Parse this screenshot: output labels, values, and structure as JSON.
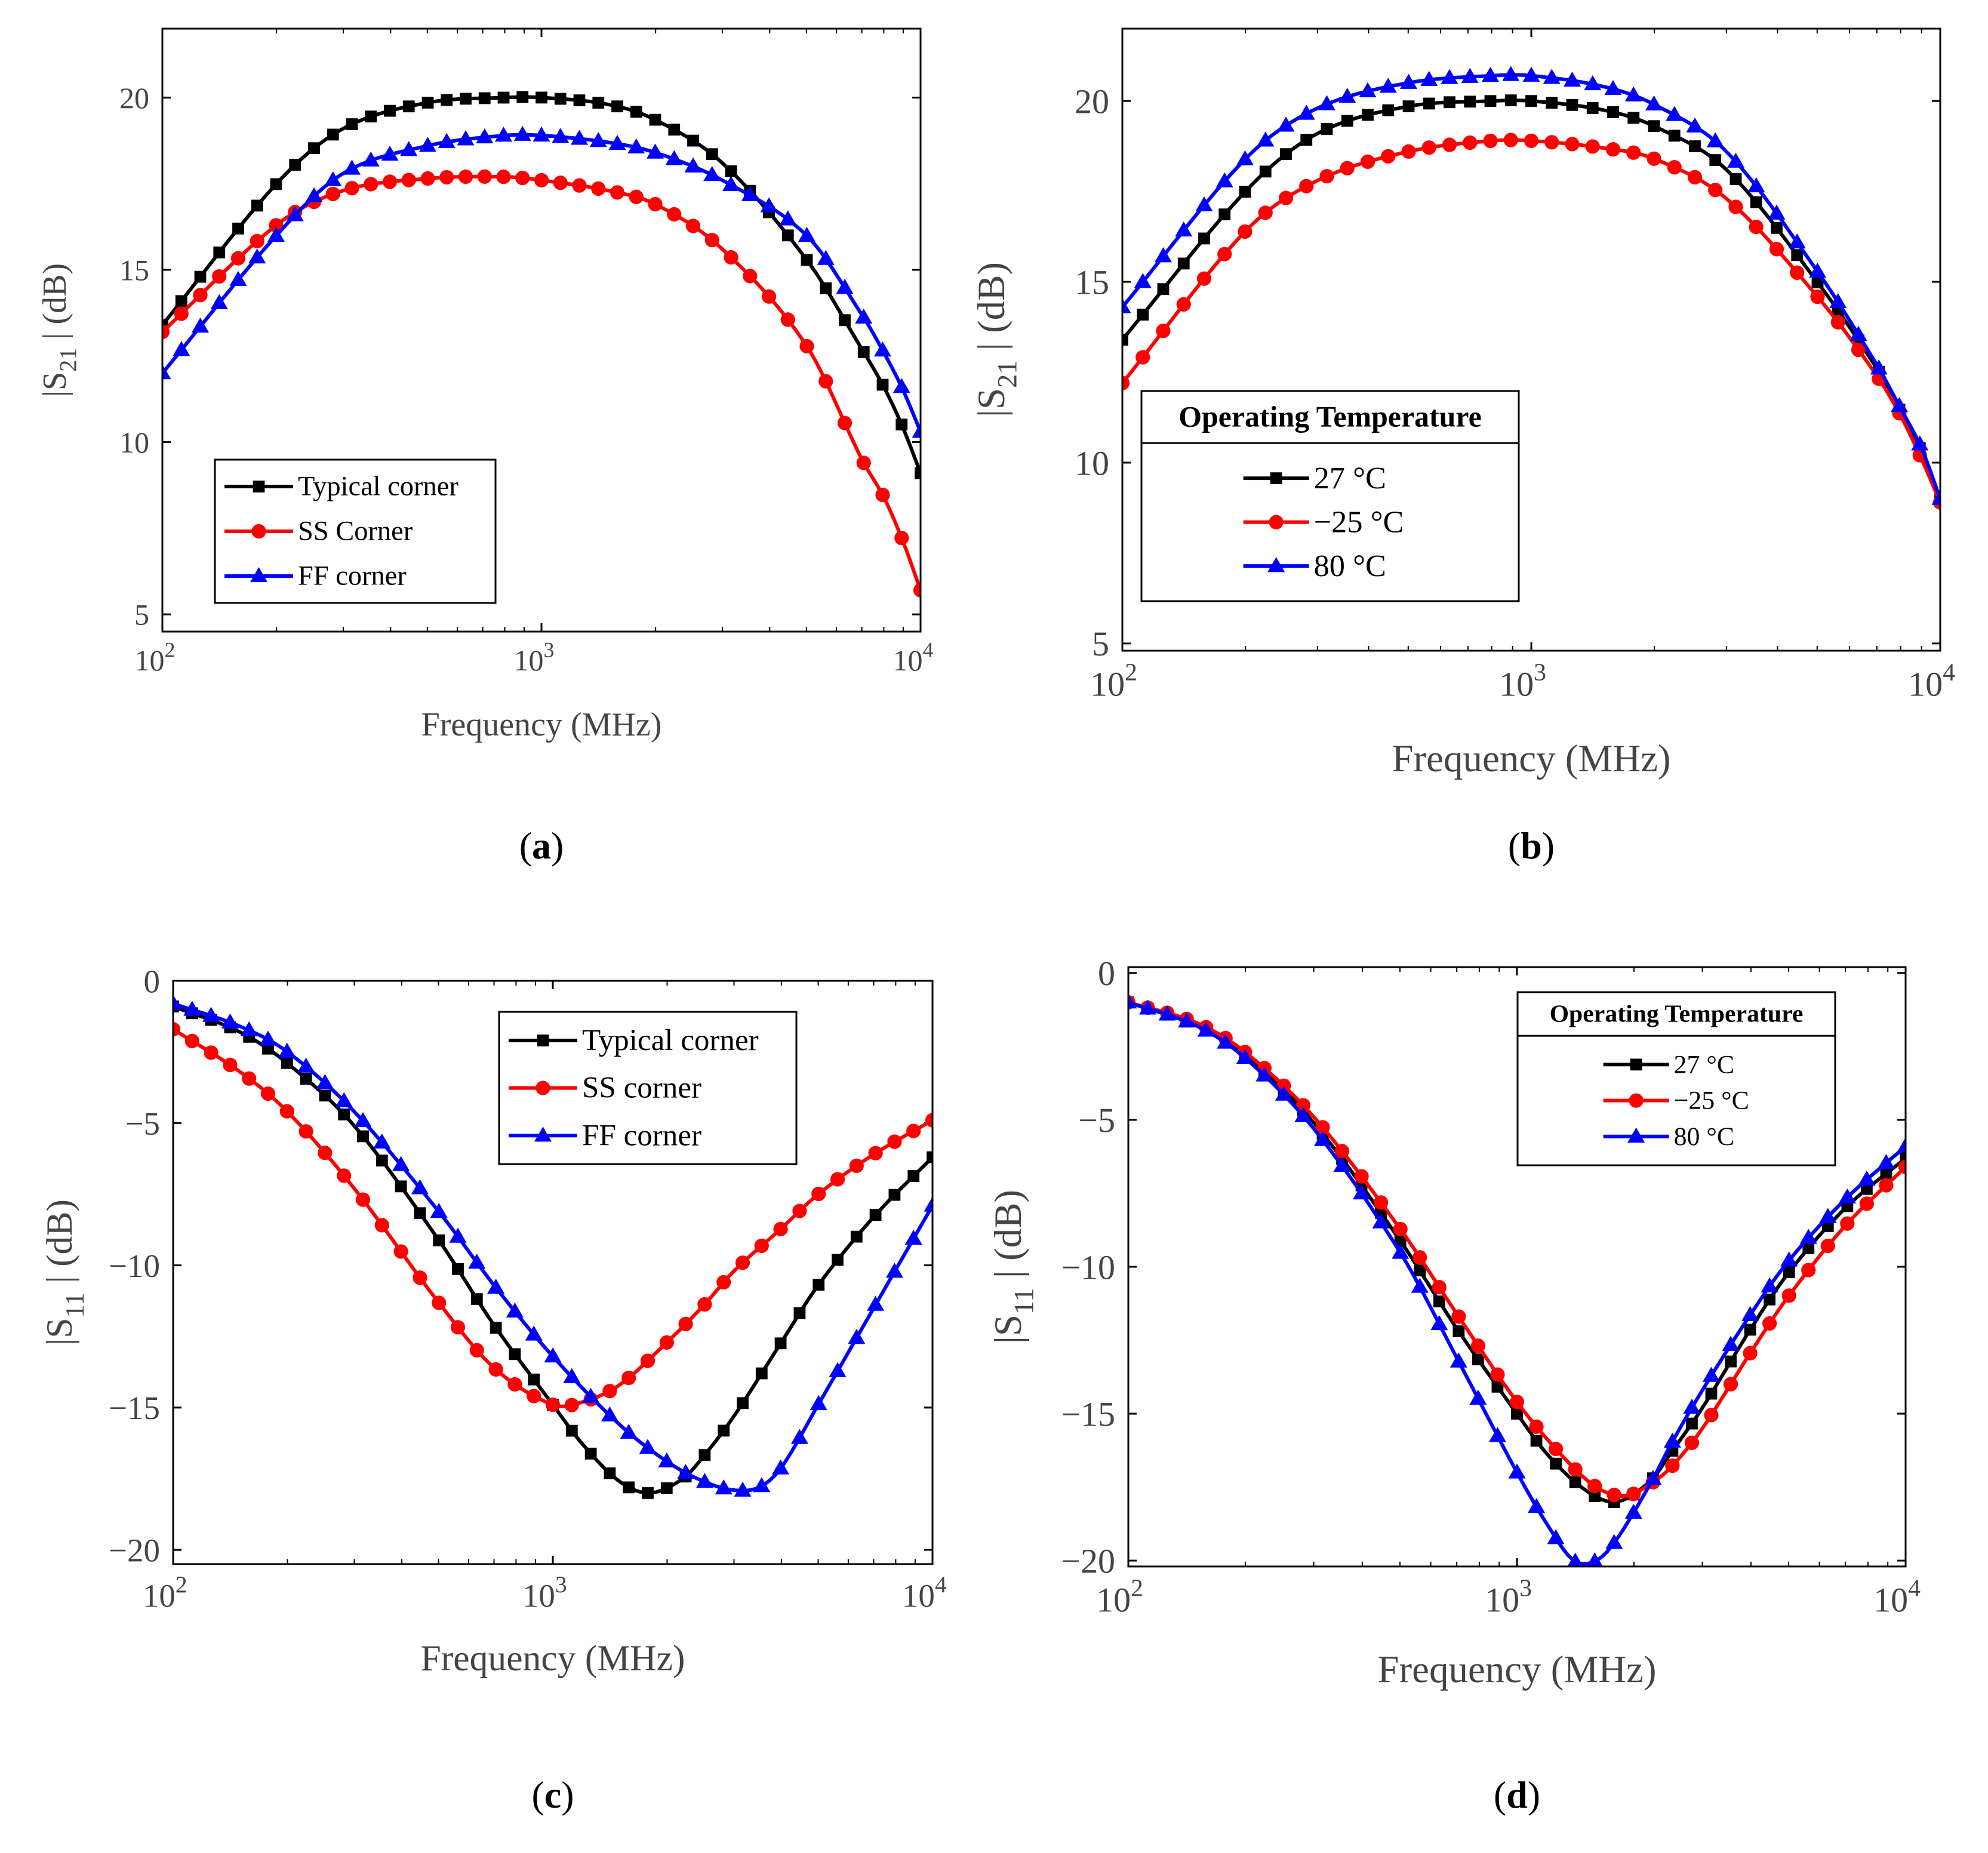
{
  "chart_data": [
    {
      "panel_label": "a",
      "type": "line",
      "xscale": "log",
      "xlim": [
        100,
        10000
      ],
      "ylim": [
        4.5,
        22
      ],
      "xlabel": "Frequency (MHz)",
      "ylabel": "|S21| (dB)",
      "xticks": [
        100,
        1000,
        10000
      ],
      "xtick_labels": [
        {
          "base": "10",
          "exp": "2"
        },
        {
          "base": "10",
          "exp": "3"
        },
        {
          "base": "10",
          "exp": "4"
        }
      ],
      "yticks": [
        5,
        10,
        15,
        20
      ],
      "ytick_labels": [
        "5",
        "10",
        "15",
        "20"
      ],
      "legend_title": "",
      "legend_position": "bottom-left",
      "series": [
        {
          "name": "Typical corner",
          "color": "#000000",
          "marker": "square",
          "x": [
            100,
            200,
            300,
            500,
            800,
            1000,
            1500,
            2000,
            3000,
            5000,
            7000,
            8000,
            9000,
            10000
          ],
          "y": [
            13.4,
            17.5,
            19.1,
            19.85,
            20.0,
            20.0,
            19.8,
            19.35,
            18.1,
            15.3,
            12.7,
            11.6,
            10.4,
            9.1
          ]
        },
        {
          "name": "SS Corner",
          "color": "#ff0000",
          "marker": "circle",
          "x": [
            100,
            200,
            300,
            500,
            800,
            1000,
            1500,
            2000,
            3000,
            5000,
            7000,
            8000,
            9000,
            10000
          ],
          "y": [
            13.2,
            16.3,
            17.3,
            17.65,
            17.7,
            17.6,
            17.3,
            16.9,
            15.6,
            12.8,
            9.5,
            8.4,
            7.1,
            5.7
          ]
        },
        {
          "name": "FF corner",
          "color": "#0000ff",
          "marker": "triangle",
          "x": [
            100,
            200,
            300,
            500,
            800,
            1000,
            1500,
            2000,
            3000,
            5000,
            7000,
            8000,
            9000,
            10000
          ],
          "y": [
            12.0,
            16.0,
            17.8,
            18.6,
            18.9,
            18.9,
            18.7,
            18.4,
            17.6,
            16.0,
            13.7,
            12.6,
            11.5,
            10.3
          ]
        }
      ]
    },
    {
      "panel_label": "b",
      "type": "line",
      "xscale": "log",
      "xlim": [
        100,
        10000
      ],
      "ylim": [
        4.8,
        22
      ],
      "xlabel": "Frequency (MHz)",
      "ylabel": "|S21| (dB)",
      "xticks": [
        100,
        1000,
        10000
      ],
      "xtick_labels": [
        {
          "base": "10",
          "exp": "2"
        },
        {
          "base": "10",
          "exp": "3"
        },
        {
          "base": "10",
          "exp": "4"
        }
      ],
      "yticks": [
        5,
        10,
        15,
        20
      ],
      "ytick_labels": [
        "5",
        "10",
        "15",
        "20"
      ],
      "legend_title": "Operating Temperature",
      "legend_position": "bottom-left",
      "series": [
        {
          "name": "27 °C",
          "color": "#000000",
          "marker": "square",
          "x": [
            100,
            200,
            300,
            500,
            800,
            1000,
            1500,
            2000,
            3000,
            5000,
            7000,
            8000,
            9000,
            10000
          ],
          "y": [
            13.4,
            17.5,
            19.1,
            19.85,
            20.0,
            20.0,
            19.75,
            19.3,
            18.1,
            15.0,
            12.6,
            11.4,
            10.3,
            9.0
          ]
        },
        {
          "name": "−25 °C",
          "color": "#ff0000",
          "marker": "circle",
          "x": [
            100,
            200,
            300,
            500,
            800,
            1000,
            1500,
            2000,
            3000,
            5000,
            7000,
            8000,
            9000,
            10000
          ],
          "y": [
            12.2,
            16.4,
            17.8,
            18.6,
            18.9,
            18.9,
            18.7,
            18.4,
            17.3,
            14.6,
            12.4,
            11.3,
            10.1,
            8.9
          ]
        },
        {
          "name": "80 °C",
          "color": "#0000ff",
          "marker": "triangle",
          "x": [
            100,
            200,
            300,
            500,
            800,
            1000,
            1500,
            2000,
            3000,
            5000,
            7000,
            8000,
            9000,
            10000
          ],
          "y": [
            14.3,
            18.4,
            19.8,
            20.5,
            20.7,
            20.7,
            20.4,
            19.9,
            18.6,
            15.3,
            12.7,
            11.5,
            10.4,
            9.0
          ]
        }
      ]
    },
    {
      "panel_label": "c",
      "type": "line",
      "xscale": "log",
      "xlim": [
        100,
        10000
      ],
      "ylim": [
        -20.5,
        0
      ],
      "xlabel": "Frequency (MHz)",
      "ylabel": "|S11| (dB)",
      "xticks": [
        100,
        1000,
        10000
      ],
      "xtick_labels": [
        {
          "base": "10",
          "exp": "2"
        },
        {
          "base": "10",
          "exp": "3"
        },
        {
          "base": "10",
          "exp": "4"
        }
      ],
      "yticks": [
        -20,
        -15,
        -10,
        -5,
        0
      ],
      "ytick_labels": [
        "−20",
        "−15",
        "−10",
        "−5",
        "0"
      ],
      "legend_title": "",
      "legend_position": "top-right",
      "series": [
        {
          "name": "Typical corner",
          "color": "#000000",
          "marker": "square",
          "x": [
            100,
            150,
            200,
            300,
            500,
            700,
            1000,
            1200,
            1500,
            1800,
            2200,
            2500,
            3000,
            4000,
            5000,
            7000,
            10000
          ],
          "y": [
            -0.9,
            -1.8,
            -2.9,
            -5.1,
            -9.1,
            -12.1,
            -14.9,
            -16.3,
            -17.6,
            -18.0,
            -17.5,
            -16.7,
            -15.3,
            -12.7,
            -10.7,
            -8.3,
            -6.2
          ]
        },
        {
          "name": "SS corner",
          "color": "#ff0000",
          "marker": "circle",
          "x": [
            100,
            150,
            200,
            300,
            500,
            700,
            1000,
            1200,
            1500,
            2000,
            2500,
            3000,
            4000,
            5000,
            7000,
            10000
          ],
          "y": [
            -1.7,
            -3.2,
            -4.6,
            -7.3,
            -11.3,
            -13.6,
            -14.9,
            -14.8,
            -14.2,
            -12.7,
            -11.4,
            -10.2,
            -8.7,
            -7.5,
            -6.1,
            -4.9
          ]
        },
        {
          "name": "FF corner",
          "color": "#0000ff",
          "marker": "triangle",
          "x": [
            100,
            150,
            200,
            300,
            500,
            700,
            1000,
            1500,
            2000,
            2500,
            3000,
            3500,
            4000,
            5000,
            7000,
            10000
          ],
          "y": [
            -0.8,
            -1.6,
            -2.5,
            -4.6,
            -8.1,
            -10.7,
            -13.2,
            -15.6,
            -16.9,
            -17.6,
            -17.9,
            -17.8,
            -17.1,
            -14.9,
            -11.5,
            -7.9
          ]
        }
      ]
    },
    {
      "panel_label": "d",
      "type": "line",
      "xscale": "log",
      "xlim": [
        100,
        10000
      ],
      "ylim": [
        -20.2,
        0.2
      ],
      "xlabel": "Frequency (MHz)",
      "ylabel": "|S11| (dB)",
      "xticks": [
        100,
        1000,
        10000
      ],
      "xtick_labels": [
        {
          "base": "10",
          "exp": "2"
        },
        {
          "base": "10",
          "exp": "3"
        },
        {
          "base": "10",
          "exp": "4"
        }
      ],
      "yticks": [
        -20,
        -15,
        -10,
        -5,
        0
      ],
      "ytick_labels": [
        "−20",
        "−15",
        "−10",
        "−5",
        "0"
      ],
      "legend_title": "Operating Temperature",
      "legend_position": "top-right",
      "series": [
        {
          "name": "27 °C",
          "color": "#000000",
          "marker": "square",
          "x": [
            100,
            150,
            200,
            300,
            500,
            700,
            1000,
            1200,
            1500,
            1800,
            2200,
            2500,
            3000,
            4000,
            5000,
            7000,
            10000
          ],
          "y": [
            -1.0,
            -1.8,
            -2.8,
            -5.1,
            -9.1,
            -12.1,
            -15.0,
            -16.4,
            -17.6,
            -18.0,
            -17.3,
            -16.3,
            -14.8,
            -12.1,
            -10.2,
            -8.0,
            -6.3
          ]
        },
        {
          "name": "−25 °C",
          "color": "#ff0000",
          "marker": "circle",
          "x": [
            100,
            150,
            200,
            300,
            500,
            700,
            1000,
            1300,
            1600,
            1900,
            2200,
            2500,
            3000,
            4000,
            5000,
            7000,
            10000
          ],
          "y": [
            -1.0,
            -1.7,
            -2.7,
            -4.9,
            -8.7,
            -11.6,
            -14.6,
            -16.4,
            -17.5,
            -17.8,
            -17.4,
            -16.8,
            -15.5,
            -12.9,
            -11.0,
            -8.6,
            -6.6
          ]
        },
        {
          "name": "80 °C",
          "color": "#0000ff",
          "marker": "triangle",
          "x": [
            100,
            150,
            200,
            300,
            500,
            700,
            1000,
            1200,
            1400,
            1600,
            1800,
            2200,
            2500,
            3000,
            4000,
            5000,
            7000,
            10000
          ],
          "y": [
            -1.0,
            -1.8,
            -2.9,
            -5.3,
            -9.5,
            -13.1,
            -17.0,
            -18.8,
            -20.0,
            -20.0,
            -19.3,
            -17.4,
            -16.0,
            -14.2,
            -11.6,
            -9.8,
            -7.7,
            -5.9
          ]
        }
      ]
    }
  ]
}
